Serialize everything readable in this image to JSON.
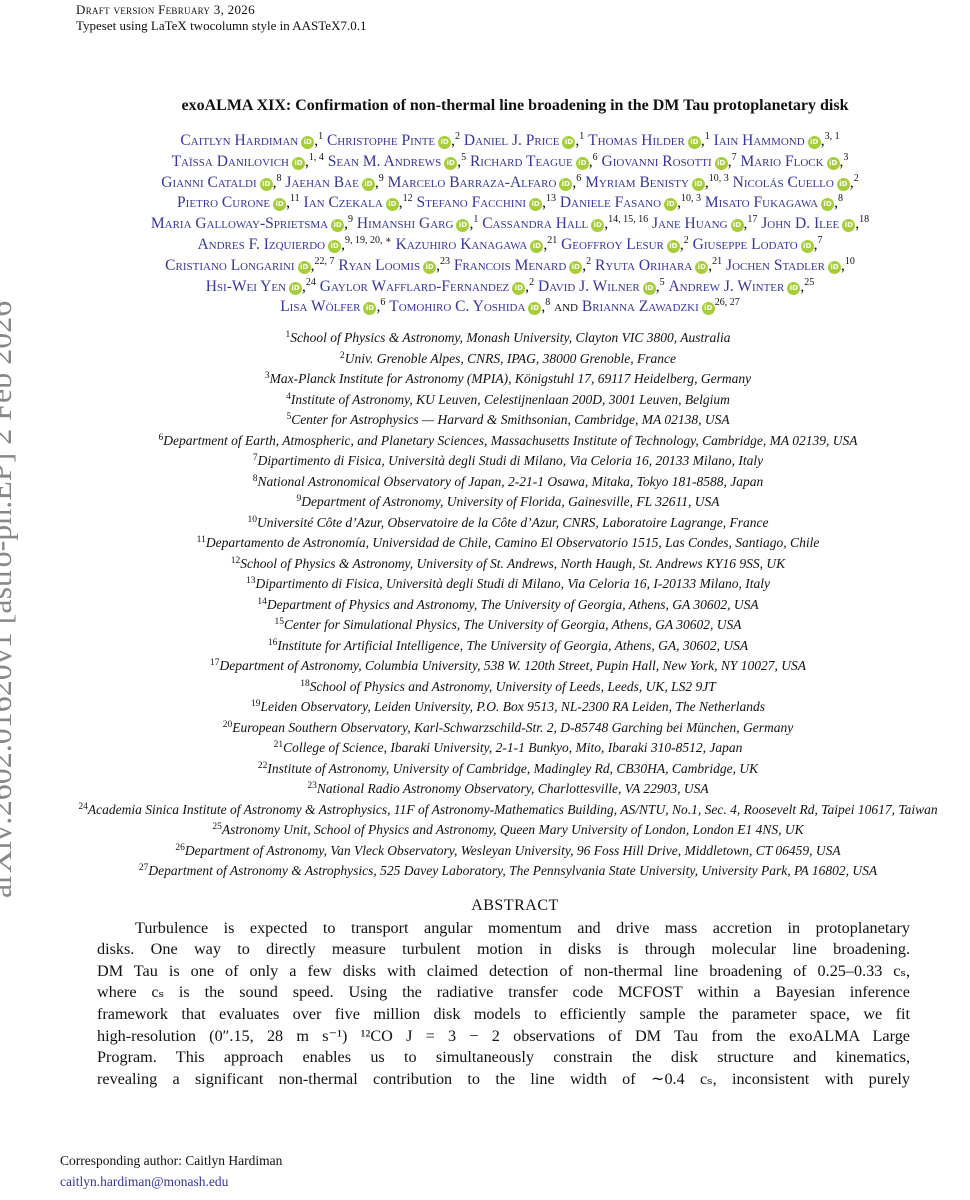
{
  "header": {
    "draft": "Draft version February 3, 2026",
    "typeset": "Typeset using LaTeX twocolumn style in AASTeX7.0.1"
  },
  "side_stamp": "arXiv:2602.01620v1  [astro-ph.EP]  2 Feb 2026",
  "title": "exoALMA XIX: Confirmation of non-thermal line broadening in the DM Tau protoplanetary disk",
  "orcid_icon": "orcid-icon",
  "colors": {
    "link": "#35359a",
    "orcid": "#a6ce39",
    "stamp": "#888888"
  },
  "authors": [
    [
      {
        "name": "Caitlyn Hardiman",
        "sup": "1"
      },
      {
        "name": "Christophe Pinte",
        "sup": "2"
      },
      {
        "name": "Daniel J. Price",
        "sup": "1"
      },
      {
        "name": "Thomas Hilder",
        "sup": "1"
      },
      {
        "name": "Iain Hammond",
        "sup": "3, 1"
      }
    ],
    [
      {
        "name": "Taïssa Danilovich",
        "sup": "1, 4"
      },
      {
        "name": "Sean M. Andrews",
        "sup": "5"
      },
      {
        "name": "Richard Teague",
        "sup": "6"
      },
      {
        "name": "Giovanni Rosotti",
        "sup": "7"
      },
      {
        "name": "Mario Flock",
        "sup": "3"
      }
    ],
    [
      {
        "name": "Gianni Cataldi",
        "sup": "8"
      },
      {
        "name": "Jaehan Bae",
        "sup": "9"
      },
      {
        "name": "Marcelo Barraza-Alfaro",
        "sup": "6"
      },
      {
        "name": "Myriam Benisty",
        "sup": "10, 3"
      },
      {
        "name": "Nicolás Cuello",
        "sup": "2"
      }
    ],
    [
      {
        "name": "Pietro Curone",
        "sup": "11"
      },
      {
        "name": "Ian Czekala",
        "sup": "12"
      },
      {
        "name": "Stefano Facchini",
        "sup": "13"
      },
      {
        "name": "Daniele Fasano",
        "sup": "10, 3"
      },
      {
        "name": "Misato Fukagawa",
        "sup": "8"
      }
    ],
    [
      {
        "name": "Maria Galloway-Sprietsma",
        "sup": "9"
      },
      {
        "name": "Himanshi Garg",
        "sup": "1"
      },
      {
        "name": "Cassandra Hall",
        "sup": "14, 15, 16"
      },
      {
        "name": "Jane Huang",
        "sup": "17"
      },
      {
        "name": "John D. Ilee",
        "sup": "18"
      }
    ],
    [
      {
        "name": "Andres F. Izquierdo",
        "sup": "9, 19, 20, ∗"
      },
      {
        "name": "Kazuhiro Kanagawa",
        "sup": "21"
      },
      {
        "name": "Geoffroy Lesur",
        "sup": "2"
      },
      {
        "name": "Giuseppe Lodato",
        "sup": "7"
      }
    ],
    [
      {
        "name": "Cristiano Longarini",
        "sup": "22, 7"
      },
      {
        "name": "Ryan Loomis",
        "sup": "23"
      },
      {
        "name": "Francois Menard",
        "sup": "2"
      },
      {
        "name": "Ryuta Orihara",
        "sup": "21"
      },
      {
        "name": "Jochen Stadler",
        "sup": "10"
      }
    ],
    [
      {
        "name": "Hsi-Wei Yen",
        "sup": "24"
      },
      {
        "name": "Gaylor Wafflard-Fernandez",
        "sup": "2"
      },
      {
        "name": "David J. Wilner",
        "sup": "5"
      },
      {
        "name": "Andrew J. Winter",
        "sup": "25"
      }
    ],
    [
      {
        "name": "Lisa Wölfer",
        "sup": "6"
      },
      {
        "name": "Tomohiro C. Yoshida",
        "sup": "8"
      },
      {
        "name": "Brianna Zawadzki",
        "sup": "26, 27",
        "prefix": "and",
        "last": true
      }
    ]
  ],
  "affiliations": [
    {
      "n": "1",
      "text": "School of Physics & Astronomy, Monash University, Clayton VIC 3800, Australia"
    },
    {
      "n": "2",
      "text": "Univ. Grenoble Alpes, CNRS, IPAG, 38000 Grenoble, France"
    },
    {
      "n": "3",
      "text": "Max-Planck Institute for Astronomy (MPIA), Königstuhl 17, 69117 Heidelberg, Germany"
    },
    {
      "n": "4",
      "text": "Institute of Astronomy, KU Leuven, Celestijnenlaan 200D, 3001 Leuven, Belgium"
    },
    {
      "n": "5",
      "text": "Center for Astrophysics — Harvard & Smithsonian, Cambridge, MA 02138, USA"
    },
    {
      "n": "6",
      "text": "Department of Earth, Atmospheric, and Planetary Sciences, Massachusetts Institute of Technology, Cambridge, MA 02139, USA"
    },
    {
      "n": "7",
      "text": "Dipartimento di Fisica, Università degli Studi di Milano, Via Celoria 16, 20133 Milano, Italy"
    },
    {
      "n": "8",
      "text": "National Astronomical Observatory of Japan, 2-21-1 Osawa, Mitaka, Tokyo 181-8588, Japan"
    },
    {
      "n": "9",
      "text": "Department of Astronomy, University of Florida, Gainesville, FL 32611, USA"
    },
    {
      "n": "10",
      "text": "Université Côte d’Azur, Observatoire de la Côte d’Azur, CNRS, Laboratoire Lagrange, France"
    },
    {
      "n": "11",
      "text": "Departamento de Astronomía, Universidad de Chile, Camino El Observatorio 1515, Las Condes, Santiago, Chile"
    },
    {
      "n": "12",
      "text": "School of Physics & Astronomy, University of St. Andrews, North Haugh, St. Andrews KY16 9SS, UK"
    },
    {
      "n": "13",
      "text": "Dipartimento di Fisica, Università degli Studi di Milano, Via Celoria 16, I-20133 Milano, Italy"
    },
    {
      "n": "14",
      "text": "Department of Physics and Astronomy, The University of Georgia, Athens, GA 30602, USA"
    },
    {
      "n": "15",
      "text": "Center for Simulational Physics, The University of Georgia, Athens, GA 30602, USA"
    },
    {
      "n": "16",
      "text": "Institute for Artificial Intelligence, The University of Georgia, Athens, GA, 30602, USA"
    },
    {
      "n": "17",
      "text": "Department of Astronomy, Columbia University, 538 W. 120th Street, Pupin Hall, New York, NY 10027, USA"
    },
    {
      "n": "18",
      "text": "School of Physics and Astronomy, University of Leeds, Leeds, UK, LS2 9JT"
    },
    {
      "n": "19",
      "text": "Leiden Observatory, Leiden University, P.O. Box 9513, NL-2300 RA Leiden, The Netherlands"
    },
    {
      "n": "20",
      "text": "European Southern Observatory, Karl-Schwarzschild-Str. 2, D-85748 Garching bei München, Germany"
    },
    {
      "n": "21",
      "text": "College of Science, Ibaraki University, 2-1-1 Bunkyo, Mito, Ibaraki 310-8512, Japan"
    },
    {
      "n": "22",
      "text": "Institute of Astronomy, University of Cambridge, Madingley Rd, CB30HA, Cambridge, UK"
    },
    {
      "n": "23",
      "text": "National Radio Astronomy Observatory, Charlottesville, VA 22903, USA"
    },
    {
      "n": "24",
      "text": "Academia Sinica Institute of Astronomy & Astrophysics, 11F of Astronomy-Mathematics Building, AS/NTU, No.1, Sec. 4, Roosevelt Rd, Taipei 10617, Taiwan"
    },
    {
      "n": "25",
      "text": "Astronomy Unit, School of Physics and Astronomy, Queen Mary University of London, London E1 4NS, UK"
    },
    {
      "n": "26",
      "text": "Department of Astronomy, Van Vleck Observatory, Wesleyan University, 96 Foss Hill Drive, Middletown, CT 06459, USA"
    },
    {
      "n": "27",
      "text": "Department of Astronomy & Astrophysics, 525 Davey Laboratory, The Pennsylvania State University, University Park, PA 16802, USA"
    }
  ],
  "abstract": {
    "heading": "ABSTRACT",
    "lines": [
      "Turbulence is expected to transport angular momentum and drive mass accretion in protoplanetary",
      "disks. One way to directly measure turbulent motion in disks is through molecular line broadening.",
      "DM Tau is one of only a few disks with claimed detection of non-thermal line broadening of 0.25–0.33 cₛ,",
      "where cₛ is the sound speed. Using the radiative transfer code MCFOST within a Bayesian inference",
      "framework that evaluates over five million disk models to efficiently sample the parameter space, we fit",
      "high-resolution (0″.15, 28 m s⁻¹) ¹²CO J = 3 − 2 observations of DM Tau from the exoALMA Large",
      "Program. This approach enables us to simultaneously constrain the disk structure and kinematics,",
      "revealing a significant non-thermal contribution to the line width of ∼0.4 cₛ, inconsistent with purely"
    ]
  },
  "footnote": {
    "label": "Corresponding author: Caitlyn Hardiman",
    "email": "caitlyn.hardiman@monash.edu"
  }
}
